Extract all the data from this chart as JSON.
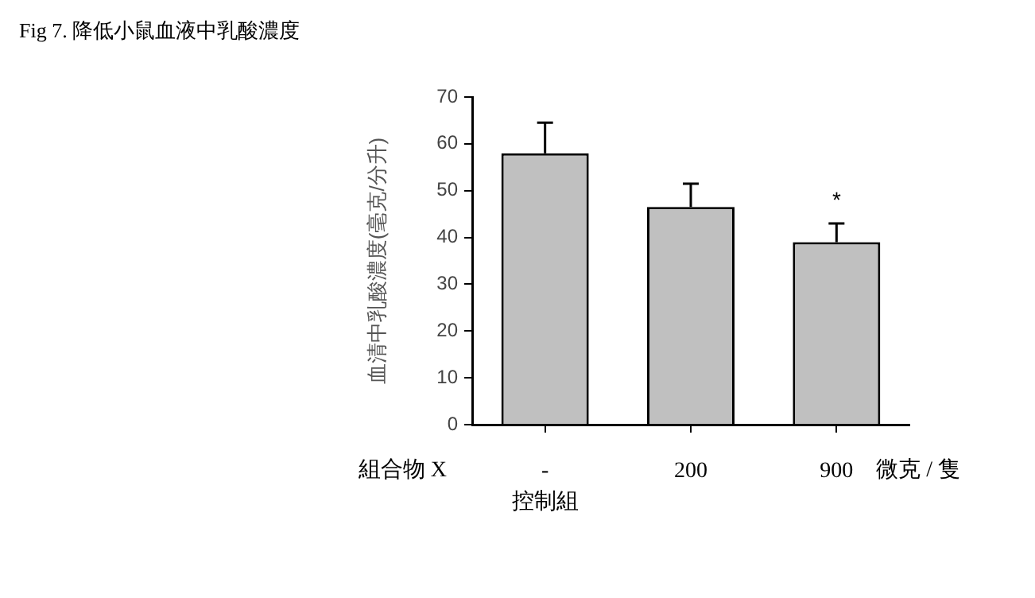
{
  "chart_data": {
    "type": "bar",
    "title": "Fig 7. 降低小鼠血液中乳酸濃度",
    "xlabel": "組合物 X",
    "ylabel": "血清中乳酸濃度(毫克/分升)",
    "categories": [
      "-",
      "200",
      "900"
    ],
    "values": [
      58,
      46.5,
      39
    ],
    "errors": [
      [
        58,
        64.5
      ],
      [
        46.5,
        51.5
      ],
      [
        39,
        43
      ]
    ],
    "color": "#c0c0c0",
    "ylim": [
      0,
      70
    ],
    "yticks": [
      0,
      10,
      20,
      30,
      40,
      50,
      60,
      70
    ],
    "grid": false,
    "legend": false,
    "annotations": [
      "*",
      "控制組",
      "微克 / 隻"
    ]
  }
}
